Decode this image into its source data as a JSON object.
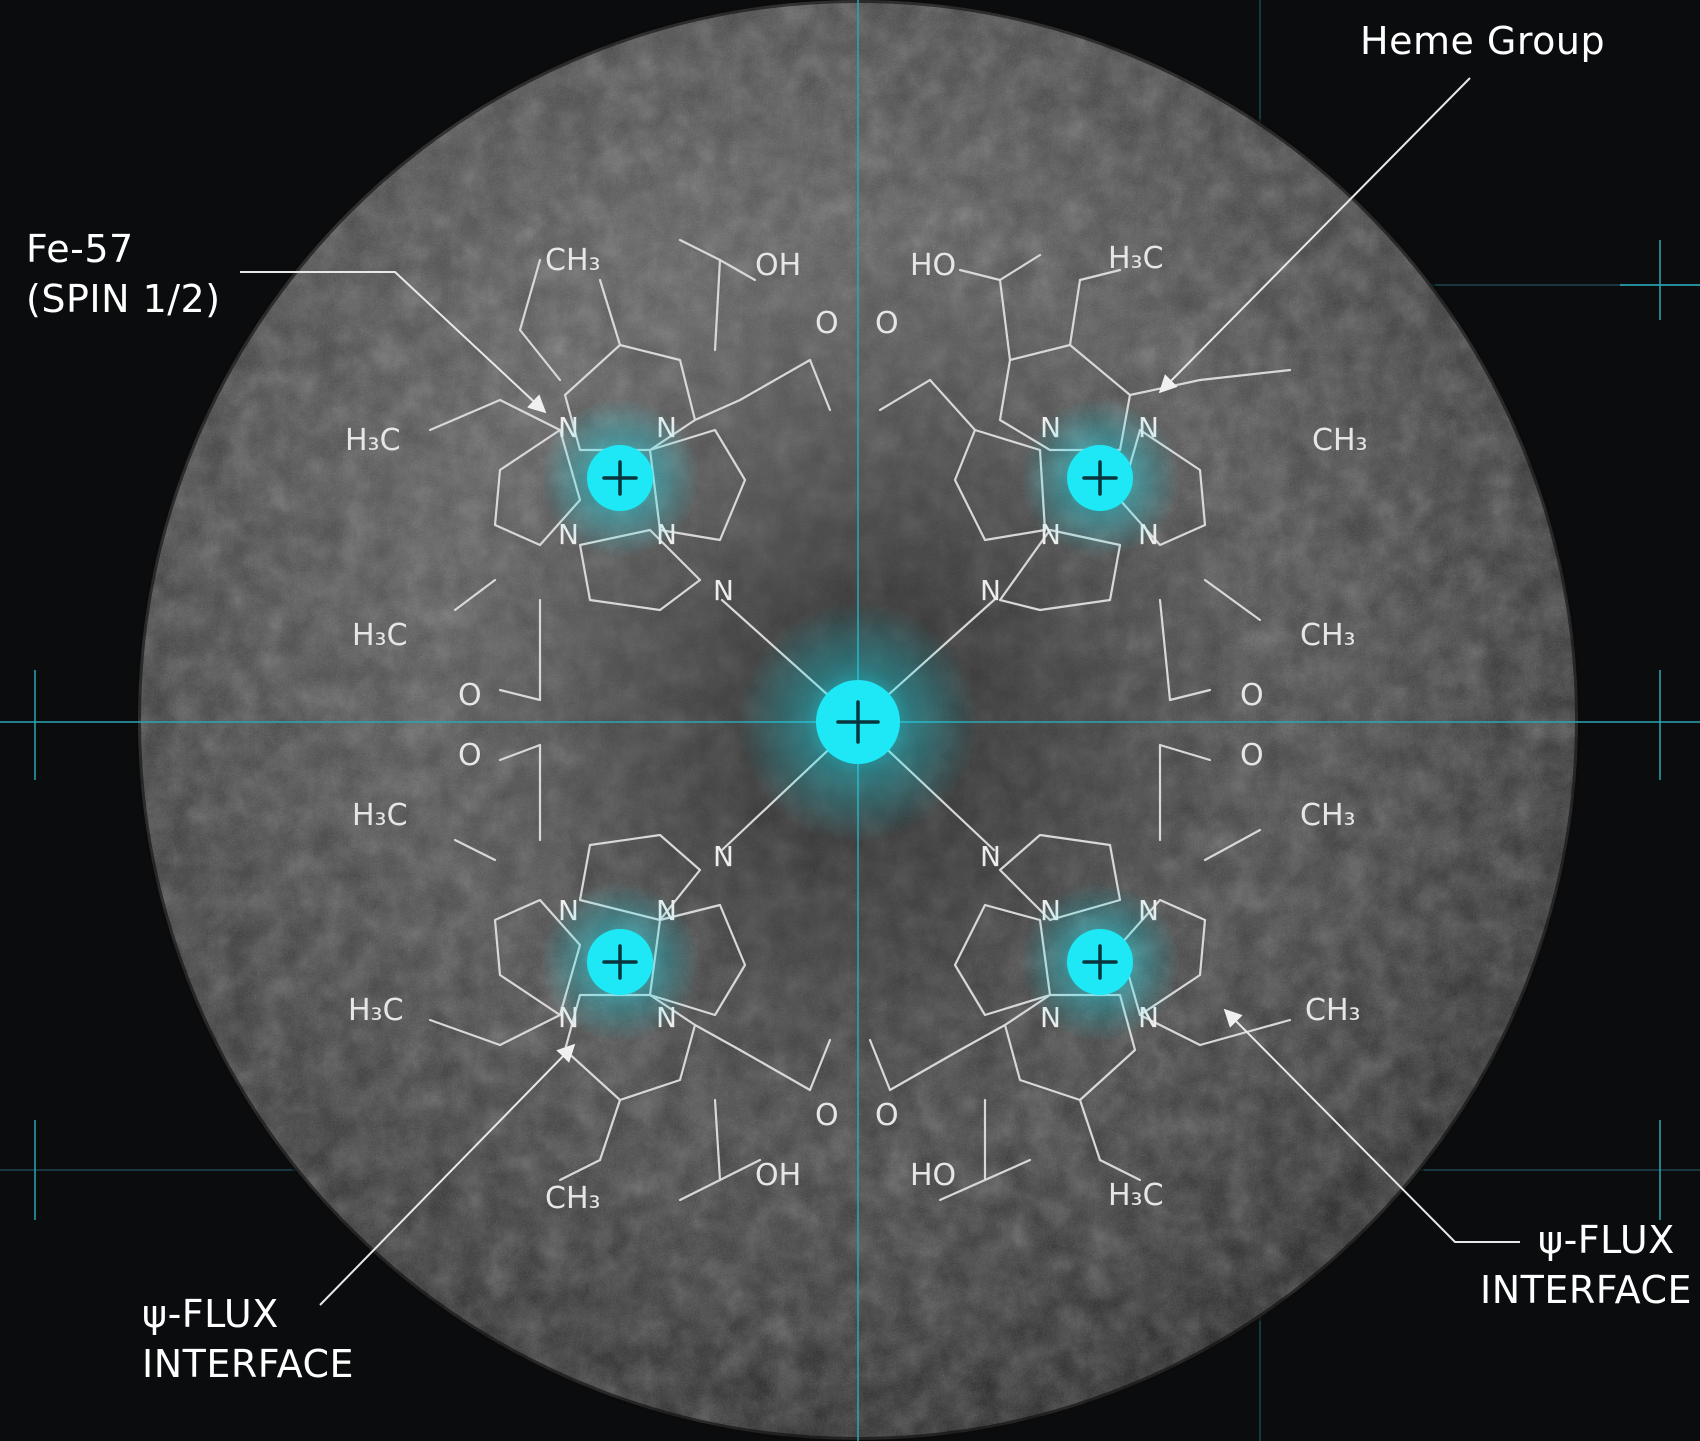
{
  "callouts": {
    "heme_group": "Heme Group",
    "fe57_line1": "Fe-57",
    "fe57_line2": "(SPIN 1/2)",
    "psi_left_line1": "ψ-FLUX",
    "psi_left_line2": "INTERFACE",
    "psi_right_line1": "ψ-FLUX",
    "psi_right_line2": "INTERFACE"
  },
  "chem_labels": {
    "oh_tl": "OH",
    "ch3_tl_top": "CH₃",
    "h3c_tl": "H₃C",
    "h3c_tl2": "H₃C",
    "o_tl": "O",
    "ho_tr": "HO",
    "h3c_tr_top": "H₃C",
    "ch3_tr": "CH₃",
    "ch3_tr2": "CH₃",
    "o_tr": "O",
    "o_ml1": "O",
    "o_ml2": "O",
    "o_mr1": "O",
    "o_mr2": "O",
    "h3c_bl": "H₃C",
    "h3c_bl2": "H₃C",
    "ch3_bl": "CH₃",
    "oh_bl": "OH",
    "o_bl": "O",
    "ch3_br_top": "CH₃",
    "ch3_br": "CH₃",
    "h3c_br": "H₃C",
    "ho_br": "HO",
    "o_br": "O",
    "n": "N"
  },
  "colors": {
    "background": "#0b0c0e",
    "sphere_light": "#8a8a8a",
    "sphere_dark": "#1c1c1c",
    "glow": "#19e6f5",
    "grid": "#2aa7b6"
  }
}
